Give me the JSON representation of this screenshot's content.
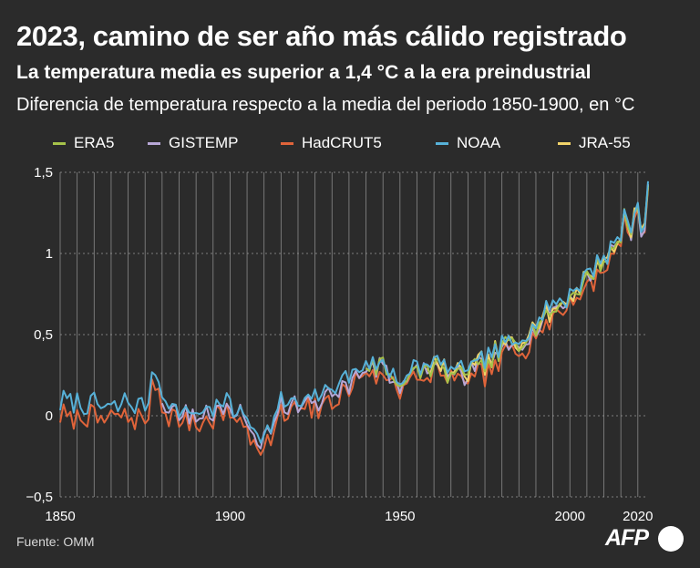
{
  "header": {
    "title": "2023, camino de ser año más cálido registrado",
    "subtitle": "La temperatura media es superior a 1,4 °C a la era preindustrial",
    "description": "Diferencia de temperatura respecto a la media del periodo 1850-1900, en °C"
  },
  "footer": {
    "source": "Fuente: OMM",
    "logo": "AFP"
  },
  "chart_data": {
    "type": "line",
    "title": "2023, camino de ser año más cálido registrado",
    "subtitle": "La temperatura media es superior a 1,4 °C a la era preindustrial",
    "ylabel": "Diferencia de temperatura respecto a la media del periodo 1850-1900, en °C",
    "xlabel": "",
    "xlim": [
      1850,
      2023
    ],
    "ylim": [
      -0.5,
      1.5
    ],
    "x_ticks": [
      1850,
      1900,
      1950,
      2000,
      2020
    ],
    "x_tick_labels": [
      "1850",
      "1900",
      "1950",
      "2000",
      "2020"
    ],
    "y_ticks": [
      -0.5,
      0,
      0.5,
      1,
      1.5
    ],
    "y_tick_labels": [
      "−0,5",
      "0",
      "0,5",
      "1",
      "1,5"
    ],
    "grid": "vertical lines every 5 years; dashed horizontal lines at y ticks",
    "legend_position": "top",
    "anchor_years": [
      1850,
      1855,
      1860,
      1865,
      1870,
      1875,
      1878,
      1880,
      1885,
      1890,
      1895,
      1900,
      1905,
      1910,
      1915,
      1920,
      1925,
      1930,
      1935,
      1940,
      1945,
      1950,
      1955,
      1960,
      1965,
      1970,
      1975,
      1980,
      1985,
      1990,
      1995,
      2000,
      2005,
      2010,
      2015,
      2016,
      2017,
      2018,
      2019,
      2020,
      2021,
      2022,
      2023
    ],
    "anchor_values": [
      0.05,
      0.05,
      0.03,
      0.02,
      0.05,
      0.0,
      0.25,
      0.1,
      0.0,
      0.0,
      0.03,
      0.05,
      -0.05,
      -0.15,
      0.05,
      0.05,
      0.07,
      0.15,
      0.2,
      0.32,
      0.3,
      0.2,
      0.25,
      0.3,
      0.25,
      0.25,
      0.3,
      0.4,
      0.45,
      0.55,
      0.65,
      0.72,
      0.85,
      0.95,
      1.08,
      1.25,
      1.17,
      1.1,
      1.25,
      1.28,
      1.12,
      1.16,
      1.42
    ],
    "series": [
      {
        "name": "ERA5",
        "color": "#a6c24a",
        "start_year": 1940,
        "offset": 0.01,
        "seed": 11,
        "noise": 0.07
      },
      {
        "name": "GISTEMP",
        "color": "#b7a7d6",
        "start_year": 1880,
        "offset": 0.0,
        "seed": 23,
        "noise": 0.07
      },
      {
        "name": "HadCRUT5",
        "color": "#e0643a",
        "start_year": 1850,
        "offset": -0.04,
        "seed": 37,
        "noise": 0.08
      },
      {
        "name": "NOAA",
        "color": "#57b1d8",
        "start_year": 1850,
        "offset": 0.03,
        "seed": 51,
        "noise": 0.06
      },
      {
        "name": "JRA-55",
        "color": "#f1d36a",
        "start_year": 1958,
        "offset": 0.02,
        "seed": 67,
        "noise": 0.07
      }
    ]
  }
}
